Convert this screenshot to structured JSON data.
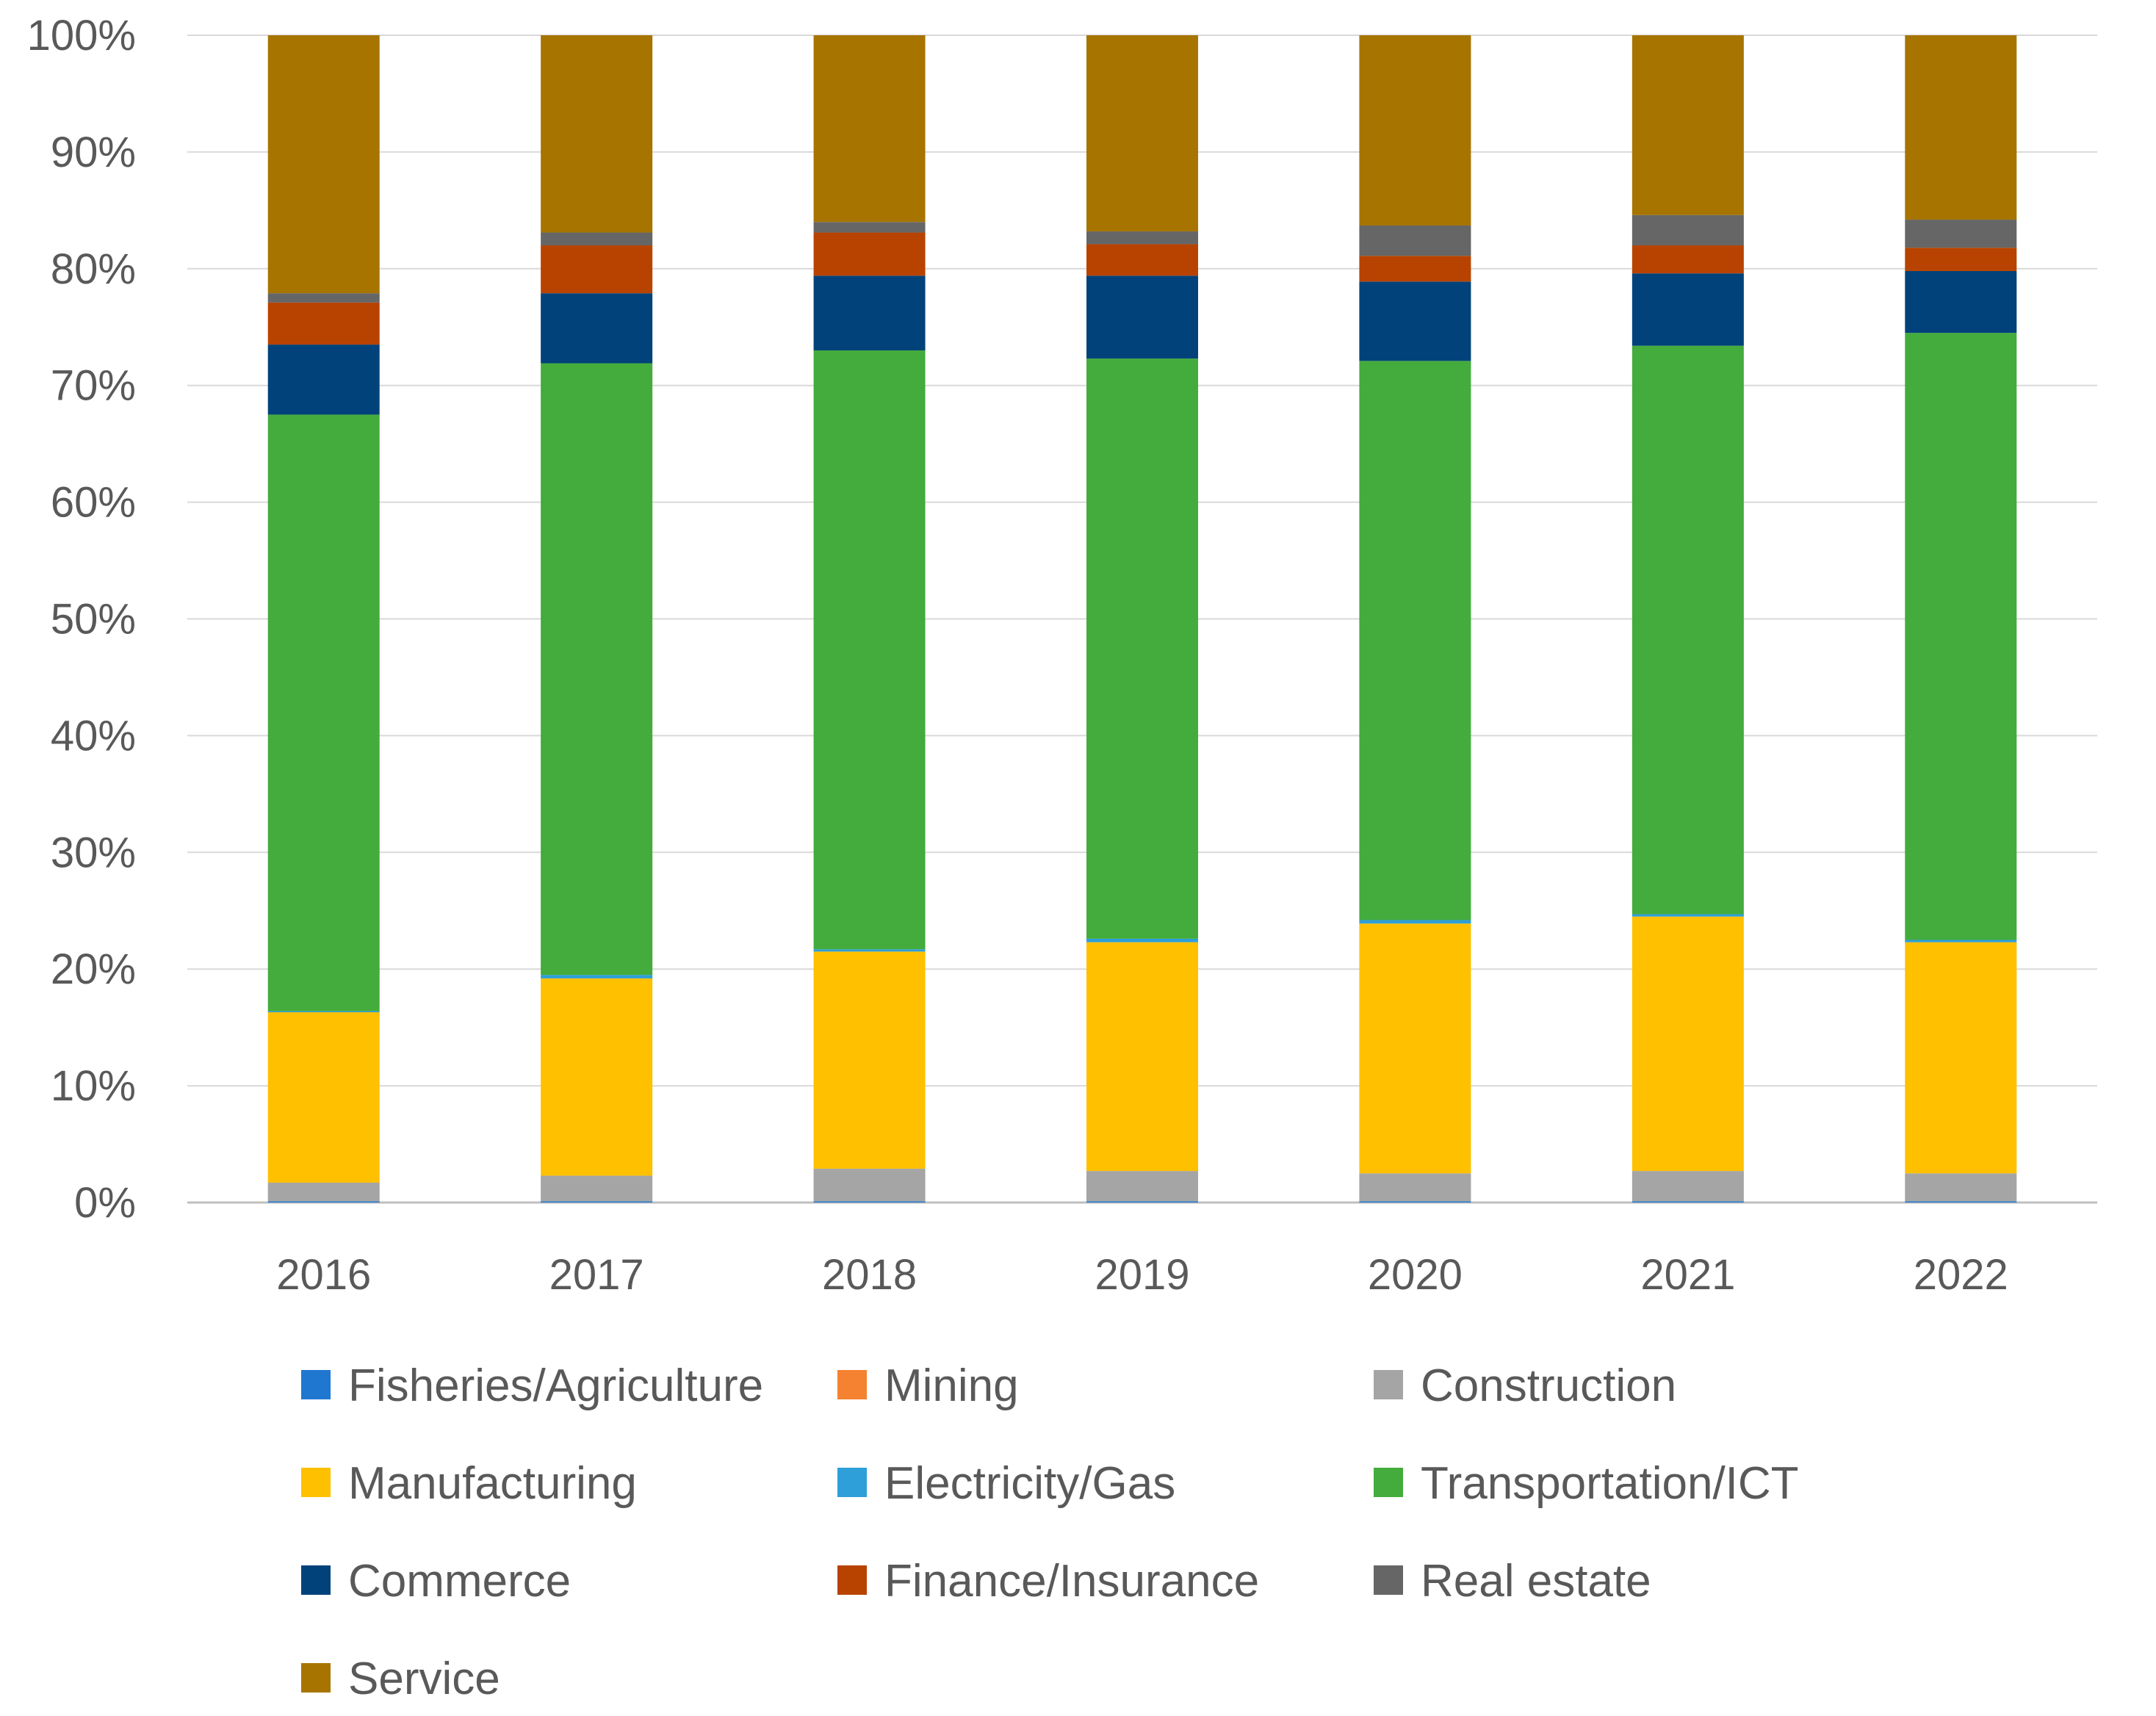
{
  "chart_data": {
    "type": "bar",
    "stacked": true,
    "percent": true,
    "title": "",
    "xlabel": "",
    "ylabel": "",
    "ylim": [
      0,
      100
    ],
    "y_ticks": [
      "0%",
      "10%",
      "20%",
      "30%",
      "40%",
      "50%",
      "60%",
      "70%",
      "80%",
      "90%",
      "100%"
    ],
    "grid": true,
    "legend_position": "bottom",
    "categories": [
      "2016",
      "2017",
      "2018",
      "2019",
      "2020",
      "2021",
      "2022"
    ],
    "series": [
      {
        "name": "Fisheries/Agriculture",
        "color": "#1f77d0",
        "values": [
          0.1,
          0.1,
          0.1,
          0.1,
          0.1,
          0.1,
          0.1
        ]
      },
      {
        "name": "Mining",
        "color": "#f58231",
        "values": [
          0.0,
          0.0,
          0.0,
          0.0,
          0.0,
          0.0,
          0.0
        ]
      },
      {
        "name": "Construction",
        "color": "#a5a5a5",
        "values": [
          1.6,
          2.2,
          2.8,
          2.6,
          2.4,
          2.6,
          2.4
        ]
      },
      {
        "name": "Manufacturing",
        "color": "#ffc000",
        "values": [
          14.6,
          16.9,
          18.6,
          19.6,
          21.4,
          21.8,
          19.8
        ]
      },
      {
        "name": "Electricity/Gas",
        "color": "#2e9fd8",
        "values": [
          0.1,
          0.3,
          0.2,
          0.3,
          0.3,
          0.2,
          0.2
        ]
      },
      {
        "name": "Transportation/ICT",
        "color": "#43ac3c",
        "values": [
          51.1,
          52.4,
          51.3,
          49.7,
          47.9,
          48.7,
          52.0
        ]
      },
      {
        "name": "Commerce",
        "color": "#02427a",
        "values": [
          6.0,
          6.0,
          6.4,
          7.1,
          6.8,
          6.2,
          5.3
        ]
      },
      {
        "name": "Finance/Insurance",
        "color": "#b84300",
        "values": [
          3.6,
          4.1,
          3.7,
          2.7,
          2.2,
          2.4,
          2.0
        ]
      },
      {
        "name": "Real estate",
        "color": "#666666",
        "values": [
          0.8,
          1.1,
          0.9,
          1.1,
          2.6,
          2.6,
          2.4
        ]
      },
      {
        "name": "Service",
        "color": "#a77400",
        "values": [
          22.1,
          16.9,
          16.0,
          16.8,
          16.3,
          15.4,
          15.8
        ]
      }
    ]
  }
}
